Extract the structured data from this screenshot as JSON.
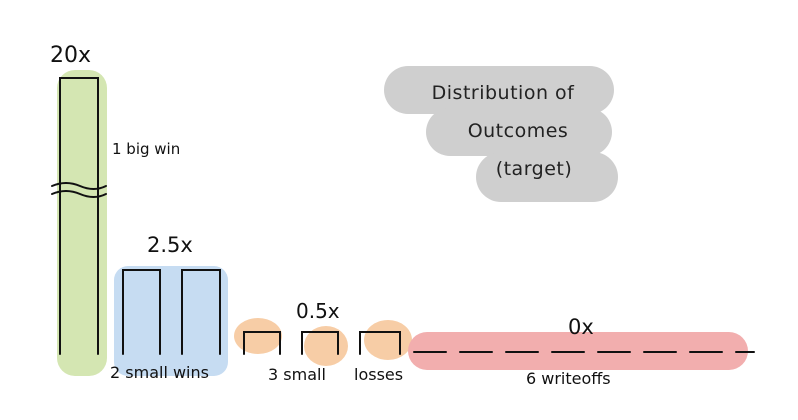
{
  "chart_data": {
    "type": "bar",
    "title": "Distribution of Outcomes (target)",
    "title_lines": [
      "Distribution   of",
      "Outcomes",
      "(target)"
    ],
    "groups": [
      {
        "label": "1 big win",
        "multiple": "20x",
        "value": 20,
        "count": 1,
        "color": "#d4e6b2"
      },
      {
        "label": "2 small wins",
        "multiple": "2.5x",
        "value": 2.5,
        "count": 2,
        "color": "#c6dcf2"
      },
      {
        "label": "3 small losses",
        "multiple": "0.5x",
        "value": 0.5,
        "count": 3,
        "color": "#f7cda6"
      },
      {
        "label": "6 writeoffs",
        "multiple": "0x",
        "value": 0,
        "count": 6,
        "color": "#f2aeae"
      }
    ],
    "axis_break": true,
    "legend": "none",
    "grid": false
  },
  "display": {
    "big_win_label": "1 big win",
    "big_win_multiple": "20x",
    "small_wins_label": "2 small wins",
    "small_wins_multiple": "2.5x",
    "small_losses_label_a": "3 small",
    "small_losses_label_b": "losses",
    "small_losses_multiple": "0.5x",
    "writeoffs_label": "6 writeoffs",
    "writeoffs_multiple": "0x"
  }
}
